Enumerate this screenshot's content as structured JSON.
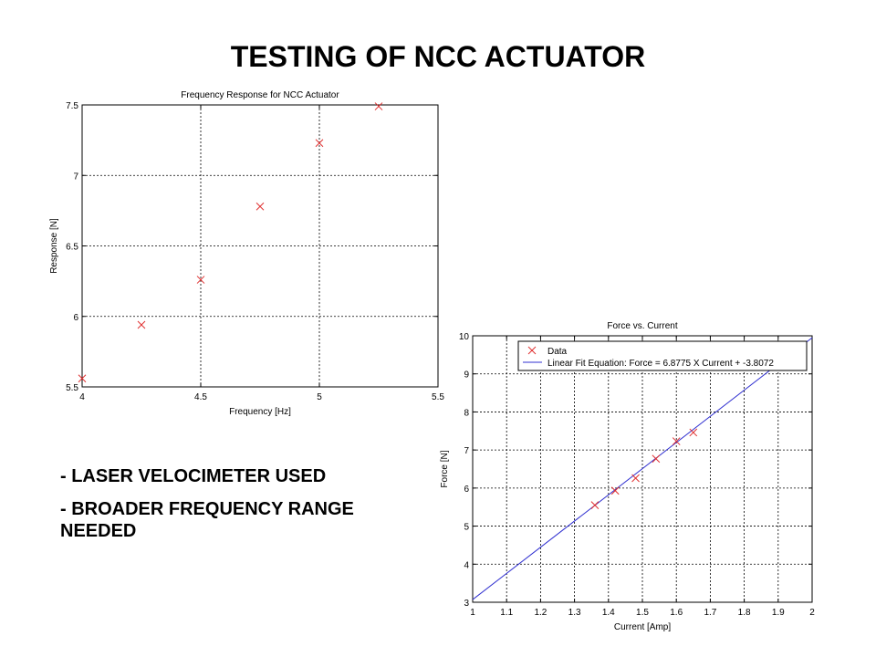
{
  "slide": {
    "title": "TESTING OF NCC ACTUATOR",
    "bullets": [
      "- LASER VELOCIMETER USED",
      "- BROADER FREQUENCY RANGE NEEDED"
    ]
  },
  "chart_data": [
    {
      "type": "scatter",
      "title": "Frequency Response for NCC Actuator",
      "xlabel": "Frequency [Hz]",
      "ylabel": "Response [N]",
      "xlim": [
        4,
        5.5
      ],
      "ylim": [
        5.5,
        7.5
      ],
      "xticks": [
        4,
        4.5,
        5,
        5.5
      ],
      "yticks": [
        5.5,
        6,
        6.5,
        7,
        7.5
      ],
      "xtick_labels": [
        "4",
        "4.5",
        "5",
        "5.5"
      ],
      "ytick_labels": [
        "5.5",
        "6",
        "6.5",
        "7",
        "7.5"
      ],
      "grid": true,
      "marker": "x",
      "marker_color": "#e03030",
      "series": [
        {
          "x": [
            4.0,
            4.25,
            4.5,
            4.75,
            5.0,
            5.25
          ],
          "y": [
            5.56,
            5.94,
            6.26,
            6.78,
            7.23,
            7.49
          ]
        }
      ]
    },
    {
      "type": "scatter",
      "title": "Force vs. Current",
      "xlabel": "Current [Amp]",
      "ylabel": "Force [N]",
      "xlim": [
        1,
        2
      ],
      "ylim": [
        3,
        10
      ],
      "xticks": [
        1,
        1.1,
        1.2,
        1.3,
        1.4,
        1.5,
        1.6,
        1.7,
        1.8,
        1.9,
        2
      ],
      "yticks": [
        3,
        4,
        5,
        6,
        7,
        8,
        9,
        10
      ],
      "xtick_labels": [
        "1",
        "1.1",
        "1.2",
        "1.3",
        "1.4",
        "1.5",
        "1.6",
        "1.7",
        "1.8",
        "1.9",
        "2"
      ],
      "ytick_labels": [
        "3",
        "4",
        "5",
        "6",
        "7",
        "8",
        "9",
        "10"
      ],
      "grid": true,
      "legend_position": "top-left",
      "series": [
        {
          "name": "Data",
          "marker": "x",
          "color": "#e03030",
          "x": [
            1.36,
            1.42,
            1.48,
            1.54,
            1.6,
            1.65
          ],
          "y": [
            5.55,
            5.93,
            6.26,
            6.77,
            7.23,
            7.46
          ]
        },
        {
          "name": "Linear Fit Equation: Force = 6.8775 X Current + -3.8072",
          "type": "line",
          "color": "#3030d0",
          "slope": 6.8775,
          "intercept": -3.8072
        }
      ]
    }
  ]
}
